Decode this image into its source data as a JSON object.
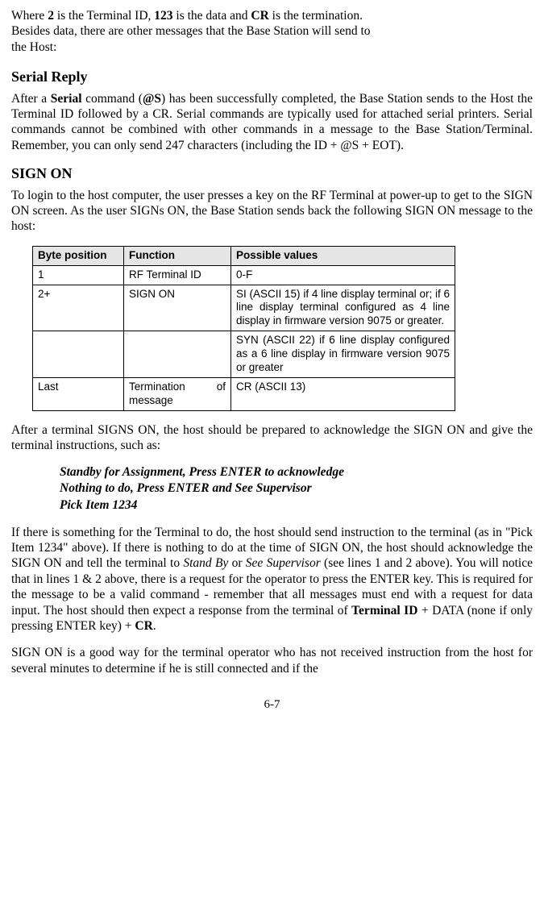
{
  "intro": {
    "line1_a": "Where ",
    "line1_b": "2",
    "line1_c": " is the Terminal ID, ",
    "line1_d": "123",
    "line1_e": " is the data and ",
    "line1_f": "CR",
    "line1_g": " is the termination.",
    "line2": "Besides data, there are other messages that the Base Station will send to",
    "line3": "the Host:"
  },
  "serial_reply": {
    "heading": "Serial Reply",
    "p_a": "After a ",
    "p_b": "Serial",
    "p_c": " command (",
    "p_d": "@S",
    "p_e": ") has been successfully completed, the Base Station sends to the Host the Terminal ID followed by a CR. Serial commands are typically used for attached serial printers. Serial commands cannot be combined with other commands in a message to the Base Station/Terminal. Remember, you can only send 247 characters (including the ID + @S + EOT)."
  },
  "sign_on": {
    "heading": "SIGN ON",
    "intro": "To login to the host computer, the user presses a key on the RF Terminal at power-up to get to the SIGN ON screen. As the user SIGNs ON, the Base Station sends back the following SIGN ON message to the host:"
  },
  "table": {
    "headers": [
      "Byte position",
      "Function",
      "Possible values"
    ],
    "rows": [
      [
        "1",
        "RF Terminal ID",
        "0-F"
      ],
      [
        "2+",
        "SIGN ON",
        "SI (ASCII 15) if 4 line display terminal or; if 6 line display terminal configured as 4 line display in firmware version 9075 or greater."
      ],
      [
        "",
        "",
        "SYN (ASCII 22) if 6 line display configured as a 6 line display in firmware version 9075 or greater"
      ],
      [
        "Last",
        "Termination of message",
        "CR (ASCII 13)"
      ]
    ]
  },
  "after_table": "After a terminal SIGNS ON, the host should be prepared to acknowledge the SIGN ON and give the terminal instructions, such as:",
  "examples": [
    "Standby for Assignment, Press ENTER to acknowledge",
    "Nothing to do, Press ENTER and See Supervisor",
    "Pick Item 1234"
  ],
  "body2": {
    "a": "If there is something for the Terminal to do, the host should send instruction to the terminal (as in \"Pick Item 1234\" above).  If there is nothing to do at the time of SIGN ON, the host should acknowledge the SIGN ON and tell the terminal to ",
    "b": "Stand By",
    "c": " or ",
    "d": "See Supervisor",
    "e": " (see lines 1 and 2 above). You will notice that in lines 1 & 2 above, there is a request for the operator to press the ENTER key. This is required for the message to be a valid command - remember that all messages must end with a request for data input. The host should then expect a response from the terminal of ",
    "f": "Terminal ID",
    "g": " + DATA (none if only pressing ENTER key) + ",
    "h": "CR",
    "i": "."
  },
  "body3": "SIGN ON is a good way for the terminal operator who has not received instruction from the host for several minutes to determine if he is still connected and if the",
  "page_number": "6-7"
}
